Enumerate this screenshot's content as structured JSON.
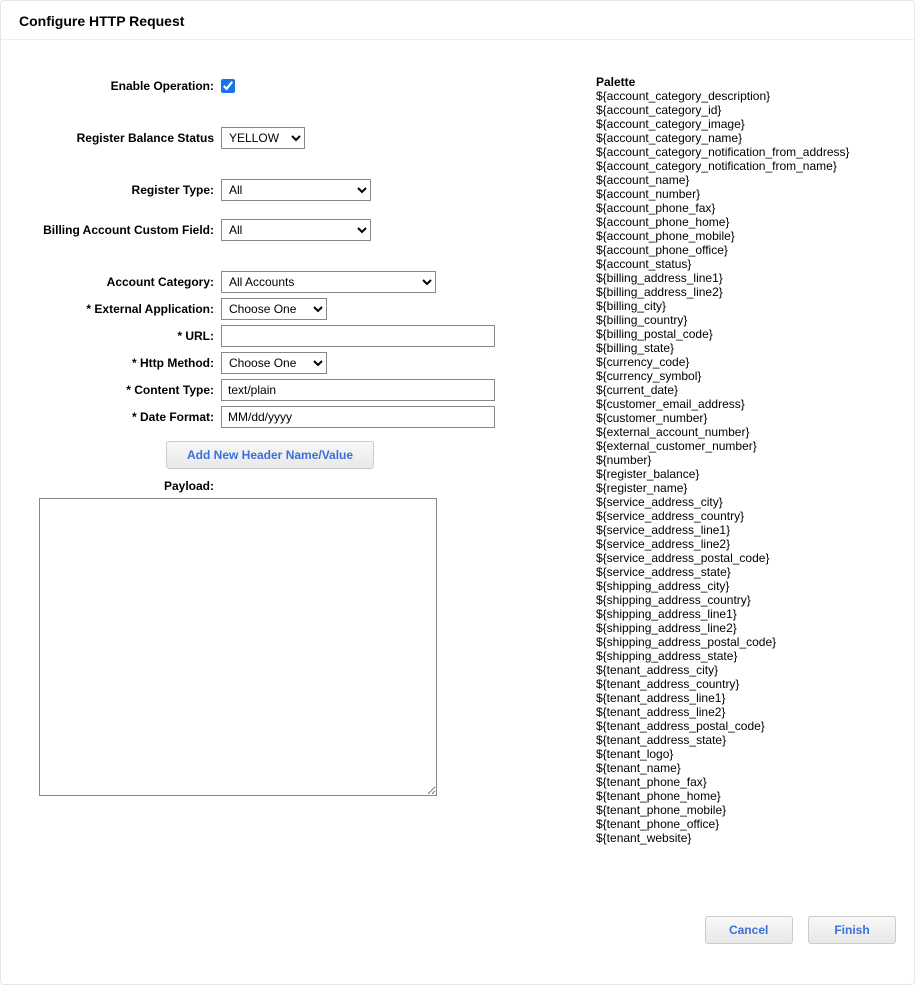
{
  "title": "Configure HTTP Request",
  "form": {
    "enable_operation_label": "Enable Operation:",
    "enable_operation_checked": true,
    "register_balance_status_label": "Register Balance Status",
    "register_balance_status_value": "YELLOW",
    "register_type_label": "Register Type:",
    "register_type_value": "All",
    "billing_custom_field_label": "Billing Account Custom Field:",
    "billing_custom_field_value": "All",
    "account_category_label": "Account Category:",
    "account_category_value": "All Accounts",
    "external_app_label": "* External Application:",
    "external_app_value": "Choose One",
    "url_label": "* URL:",
    "url_value": "",
    "http_method_label": "* Http Method:",
    "http_method_value": "Choose One",
    "content_type_label": "* Content Type:",
    "content_type_value": "text/plain",
    "date_format_label": "* Date Format:",
    "date_format_value": "MM/dd/yyyy",
    "add_header_button": "Add New Header Name/Value",
    "payload_label": "Payload:",
    "payload_value": ""
  },
  "palette": {
    "title": "Palette",
    "items": [
      "${account_category_description}",
      "${account_category_id}",
      "${account_category_image}",
      "${account_category_name}",
      "${account_category_notification_from_address}",
      "${account_category_notification_from_name}",
      "${account_name}",
      "${account_number}",
      "${account_phone_fax}",
      "${account_phone_home}",
      "${account_phone_mobile}",
      "${account_phone_office}",
      "${account_status}",
      "${billing_address_line1}",
      "${billing_address_line2}",
      "${billing_city}",
      "${billing_country}",
      "${billing_postal_code}",
      "${billing_state}",
      "${currency_code}",
      "${currency_symbol}",
      "${current_date}",
      "${customer_email_address}",
      "${customer_number}",
      "${external_account_number}",
      "${external_customer_number}",
      "${number}",
      "${register_balance}",
      "${register_name}",
      "${service_address_city}",
      "${service_address_country}",
      "${service_address_line1}",
      "${service_address_line2}",
      "${service_address_postal_code}",
      "${service_address_state}",
      "${shipping_address_city}",
      "${shipping_address_country}",
      "${shipping_address_line1}",
      "${shipping_address_line2}",
      "${shipping_address_postal_code}",
      "${shipping_address_state}",
      "${tenant_address_city}",
      "${tenant_address_country}",
      "${tenant_address_line1}",
      "${tenant_address_line2}",
      "${tenant_address_postal_code}",
      "${tenant_address_state}",
      "${tenant_logo}",
      "${tenant_name}",
      "${tenant_phone_fax}",
      "${tenant_phone_home}",
      "${tenant_phone_mobile}",
      "${tenant_phone_office}",
      "${tenant_website}"
    ]
  },
  "buttons": {
    "cancel": "Cancel",
    "finish": "Finish"
  }
}
